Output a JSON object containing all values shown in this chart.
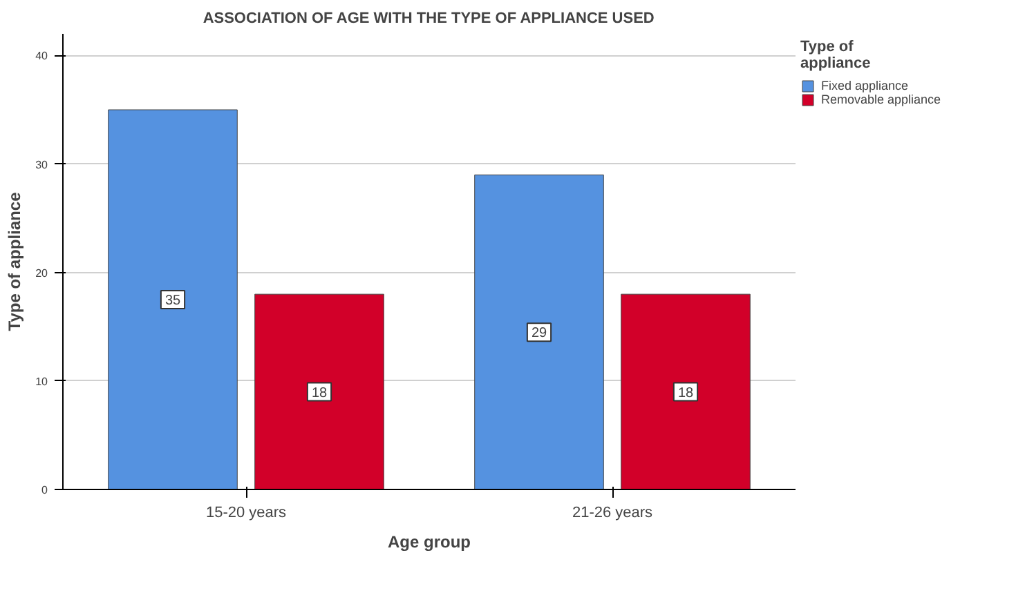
{
  "chart_data": {
    "type": "bar",
    "title": "ASSOCIATION OF AGE WITH THE TYPE OF APPLIANCE USED",
    "xlabel": "Age group",
    "ylabel": "Type of appliance",
    "legend_title": "Type of\nappliance",
    "categories": [
      "15-20 years",
      "21-26 years"
    ],
    "series": [
      {
        "name": "Fixed appliance",
        "color": "#5592e0",
        "values": [
          35,
          29
        ]
      },
      {
        "name": "Removable appliance",
        "color": "#d20029",
        "values": [
          18,
          18
        ]
      }
    ],
    "ylim": [
      0,
      42
    ],
    "yticks": [
      0,
      10,
      20,
      30,
      40
    ],
    "grid": "y",
    "legend": "top right",
    "data_labels": true
  }
}
